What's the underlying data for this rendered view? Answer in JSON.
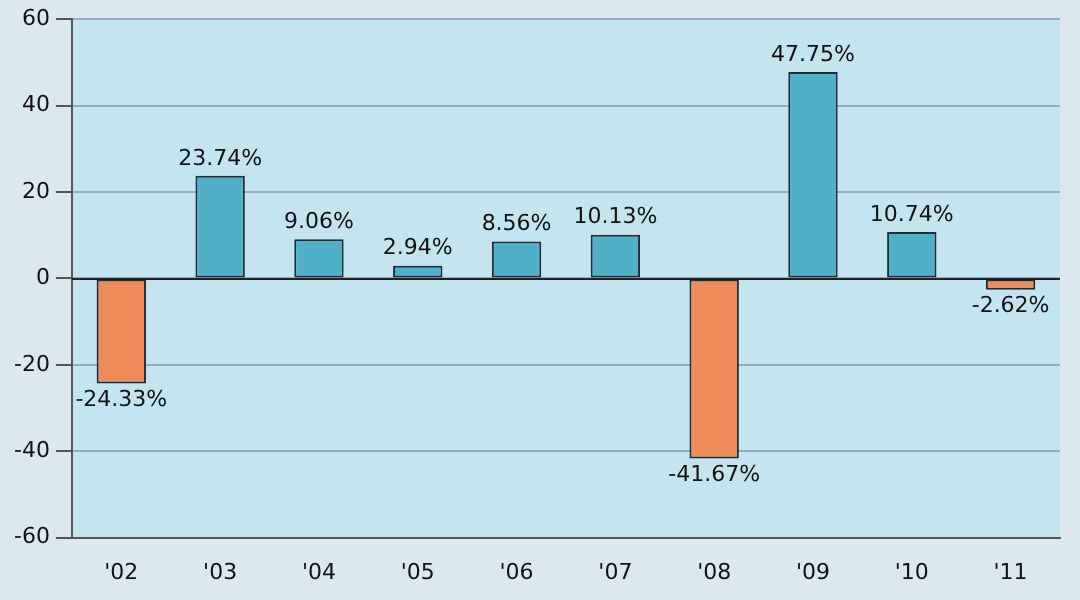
{
  "chart_data": {
    "type": "bar",
    "categories": [
      "'02",
      "'03",
      "'04",
      "'05",
      "'06",
      "'07",
      "'08",
      "'09",
      "'10",
      "'11"
    ],
    "values": [
      -24.33,
      23.74,
      9.06,
      2.94,
      8.56,
      10.13,
      -41.67,
      47.75,
      10.74,
      -2.62
    ],
    "colors": [
      "#f08c58",
      "#4fb0c8",
      "#4fb0c8",
      "#4fb0c8",
      "#4fb0c8",
      "#4fb0c8",
      "#f08c58",
      "#4fb0c8",
      "#4fb0c8",
      "#f08c58"
    ],
    "value_labels": [
      "-24.33%",
      "23.74%",
      "9.06%",
      "2.94%",
      "8.56%",
      "10.13%",
      "-41.67%",
      "47.75%",
      "10.74%",
      "-2.62%"
    ],
    "ylim": [
      -60,
      60
    ],
    "yticks": [
      -60,
      -40,
      -20,
      0,
      20,
      40,
      60
    ],
    "grid": "y",
    "legend": false
  }
}
